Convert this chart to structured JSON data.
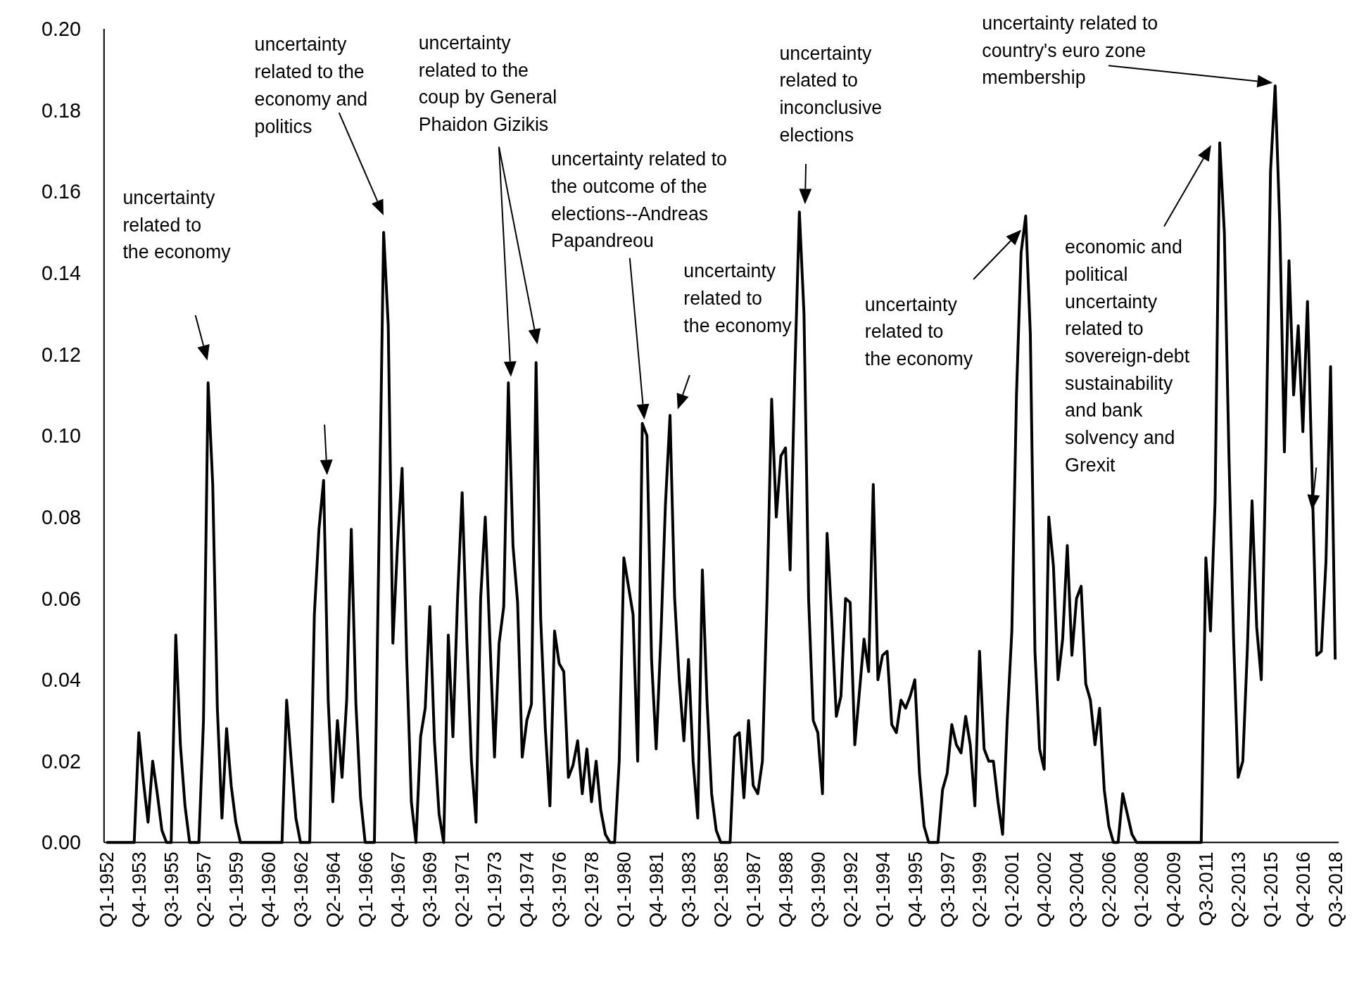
{
  "chart_data": {
    "type": "line",
    "categories": [
      "Q1-1952",
      null,
      null,
      null,
      null,
      null,
      null,
      "Q4-1953",
      null,
      null,
      null,
      null,
      null,
      null,
      "Q3-1955",
      null,
      null,
      null,
      null,
      null,
      null,
      "Q2-1957",
      null,
      null,
      null,
      null,
      null,
      null,
      "Q1-1959",
      null,
      null,
      null,
      null,
      null,
      null,
      "Q4-1960",
      null,
      null,
      null,
      null,
      null,
      null,
      "Q3-1962",
      null,
      null,
      null,
      null,
      null,
      null,
      "Q2-1964",
      null,
      null,
      null,
      null,
      null,
      null,
      "Q1-1966",
      null,
      null,
      null,
      null,
      null,
      null,
      "Q4-1967",
      null,
      null,
      null,
      null,
      null,
      null,
      "Q3-1969",
      null,
      null,
      null,
      null,
      null,
      null,
      "Q2-1971",
      null,
      null,
      null,
      null,
      null,
      null,
      "Q1-1973",
      null,
      null,
      null,
      null,
      null,
      null,
      "Q4-1974",
      null,
      null,
      null,
      null,
      null,
      null,
      "Q3-1976",
      null,
      null,
      null,
      null,
      null,
      null,
      "Q2-1978",
      null,
      null,
      null,
      null,
      null,
      null,
      "Q1-1980",
      null,
      null,
      null,
      null,
      null,
      null,
      "Q4-1981",
      null,
      null,
      null,
      null,
      null,
      null,
      "Q3-1983",
      null,
      null,
      null,
      null,
      null,
      null,
      "Q2-1985",
      null,
      null,
      null,
      null,
      null,
      null,
      "Q1-1987",
      null,
      null,
      null,
      null,
      null,
      null,
      "Q4-1988",
      null,
      null,
      null,
      null,
      null,
      null,
      "Q3-1990",
      null,
      null,
      null,
      null,
      null,
      null,
      "Q2-1992",
      null,
      null,
      null,
      null,
      null,
      null,
      "Q1-1994",
      null,
      null,
      null,
      null,
      null,
      null,
      "Q4-1995",
      null,
      null,
      null,
      null,
      null,
      null,
      "Q3-1997",
      null,
      null,
      null,
      null,
      null,
      null,
      "Q2-1999",
      null,
      null,
      null,
      null,
      null,
      null,
      "Q1-2001",
      null,
      null,
      null,
      null,
      null,
      null,
      "Q4-2002",
      null,
      null,
      null,
      null,
      null,
      null,
      "Q3-2004",
      null,
      null,
      null,
      null,
      null,
      null,
      "Q2-2006",
      null,
      null,
      null,
      null,
      null,
      null,
      "Q1-2008",
      null,
      null,
      null,
      null,
      null,
      null,
      "Q4-2009",
      null,
      null,
      null,
      null,
      null,
      null,
      "Q3-2011",
      null,
      null,
      null,
      null,
      null,
      null,
      "Q2-2013",
      null,
      null,
      null,
      null,
      null,
      null,
      "Q1-2015",
      null,
      null,
      null,
      null,
      null,
      null,
      "Q4-2016",
      null,
      null,
      null,
      null,
      null,
      null,
      "Q3-2018"
    ],
    "series": [
      {
        "color": "#000000",
        "values": [
          0,
          0,
          0,
          0,
          0,
          0,
          0,
          0.027,
          0.015,
          0.005,
          0.02,
          0.012,
          0.003,
          0,
          0,
          0.051,
          0.024,
          0.009,
          0,
          0,
          0,
          0.03,
          0.113,
          0.088,
          0.033,
          0.006,
          0.028,
          0.014,
          0.005,
          0,
          0,
          0,
          0,
          0,
          0,
          0,
          0,
          0,
          0,
          0.035,
          0.02,
          0.006,
          0,
          0,
          0,
          0.056,
          0.077,
          0.089,
          0.035,
          0.01,
          0.03,
          0.016,
          0.035,
          0.077,
          0.034,
          0.011,
          0,
          0,
          0,
          0.075,
          0.15,
          0.127,
          0.049,
          0.073,
          0.092,
          0.045,
          0.01,
          0,
          0.026,
          0.033,
          0.058,
          0.025,
          0.007,
          0,
          0.051,
          0.026,
          0.06,
          0.086,
          0.05,
          0.02,
          0.005,
          0.06,
          0.08,
          0.05,
          0.021,
          0.049,
          0.058,
          0.113,
          0.073,
          0.059,
          0.021,
          0.03,
          0.034,
          0.118,
          0.055,
          0.028,
          0.009,
          0.052,
          0.044,
          0.042,
          0.016,
          0.019,
          0.025,
          0.012,
          0.023,
          0.01,
          0.02,
          0.008,
          0.002,
          0,
          0,
          0.02,
          0.07,
          0.063,
          0.056,
          0.02,
          0.103,
          0.1,
          0.045,
          0.023,
          0.05,
          0.083,
          0.105,
          0.06,
          0.04,
          0.025,
          0.045,
          0.02,
          0.006,
          0.067,
          0.035,
          0.012,
          0.003,
          0,
          0,
          0,
          0.026,
          0.027,
          0.011,
          0.03,
          0.014,
          0.012,
          0.02,
          0.06,
          0.109,
          0.08,
          0.095,
          0.097,
          0.067,
          0.115,
          0.155,
          0.13,
          0.06,
          0.03,
          0.027,
          0.012,
          0.076,
          0.055,
          0.031,
          0.036,
          0.06,
          0.059,
          0.024,
          0.037,
          0.05,
          0.042,
          0.088,
          0.04,
          0.046,
          0.047,
          0.029,
          0.027,
          0.035,
          0.033,
          0.036,
          0.04,
          0.017,
          0.004,
          0,
          0,
          0,
          0.013,
          0.017,
          0.029,
          0.024,
          0.022,
          0.031,
          0.024,
          0.009,
          0.047,
          0.023,
          0.02,
          0.02,
          0.01,
          0.002,
          0.03,
          0.052,
          0.11,
          0.145,
          0.154,
          0.125,
          0.047,
          0.023,
          0.018,
          0.08,
          0.068,
          0.04,
          0.05,
          0.073,
          0.046,
          0.06,
          0.063,
          0.039,
          0.035,
          0.024,
          0.033,
          0.013,
          0.004,
          0,
          0,
          0.012,
          0.007,
          0.002,
          0,
          0,
          0,
          0,
          0,
          0,
          0,
          0,
          0,
          0,
          0,
          0,
          0,
          0,
          0,
          0.07,
          0.052,
          0.084,
          0.172,
          0.15,
          0.095,
          0.05,
          0.016,
          0.02,
          0.048,
          0.084,
          0.053,
          0.04,
          0.095,
          0.165,
          0.186,
          0.152,
          0.096,
          0.143,
          0.11,
          0.127,
          0.101,
          0.133,
          0.09,
          0.046,
          0.047,
          0.069,
          0.117,
          0.045
        ]
      }
    ],
    "ylim": [
      0,
      0.2
    ],
    "yticks": [
      {
        "value": 0,
        "label": "0.00"
      },
      {
        "value": 0.02,
        "label": "0.02"
      },
      {
        "value": 0.04,
        "label": "0.04"
      },
      {
        "value": 0.06,
        "label": "0.06"
      },
      {
        "value": 0.08,
        "label": "0.08"
      },
      {
        "value": 0.1,
        "label": "0.10"
      },
      {
        "value": 0.12,
        "label": "0.12"
      },
      {
        "value": 0.14,
        "label": "0.14"
      },
      {
        "value": 0.16,
        "label": "0.16"
      },
      {
        "value": 0.18,
        "label": "0.18"
      },
      {
        "value": 0.2,
        "label": "0.20"
      }
    ],
    "annotations": [
      "uncertainty related to the economy",
      "uncertainty related to the economy and politics",
      "uncertainty related to the coup by General Phaidon Gizikis",
      "uncertainty related to the outcome of the elections--Andreas Papandreou",
      "uncertainty related to the economy",
      "uncertainty related to inconclusive elections",
      "uncertainty related to the economy",
      "uncertainty related to country's euro zone membership",
      "economic and political uncertainty related to sovereign-debt sustainability and bank solvency and Grexit"
    ],
    "grid": false
  }
}
